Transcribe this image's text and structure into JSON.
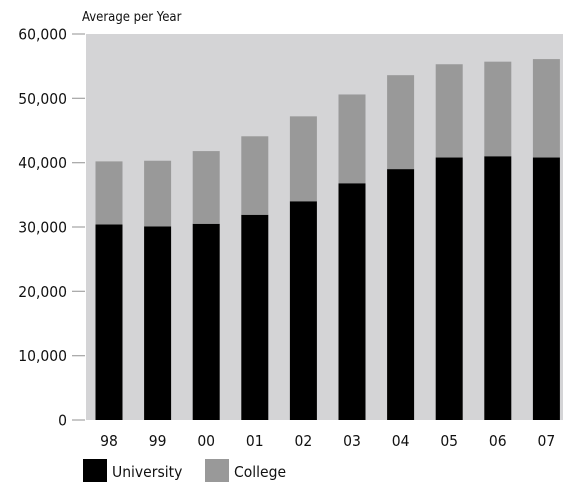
{
  "chart_data": {
    "type": "bar",
    "stacked": true,
    "y_unit_label": "Average per Year",
    "categories": [
      "98",
      "99",
      "00",
      "01",
      "02",
      "03",
      "04",
      "05",
      "06",
      "07"
    ],
    "series": [
      {
        "name": "University",
        "color": "#000000",
        "values": [
          30400,
          30100,
          30500,
          31900,
          34000,
          36800,
          39000,
          40800,
          41000,
          40800
        ]
      },
      {
        "name": "College",
        "color": "#999999",
        "values": [
          9800,
          10200,
          11300,
          12200,
          13200,
          13800,
          14600,
          14500,
          14700,
          15300
        ]
      }
    ],
    "ylim": [
      0,
      60000
    ],
    "yticks": [
      0,
      10000,
      20000,
      30000,
      40000,
      50000,
      60000
    ],
    "ytick_labels": [
      "0",
      "10,000",
      "20,000",
      "30,000",
      "40,000",
      "50,000",
      "60,000"
    ],
    "plot_background": "#d4d4d6",
    "grid": false,
    "legend_position": "bottom-left"
  }
}
